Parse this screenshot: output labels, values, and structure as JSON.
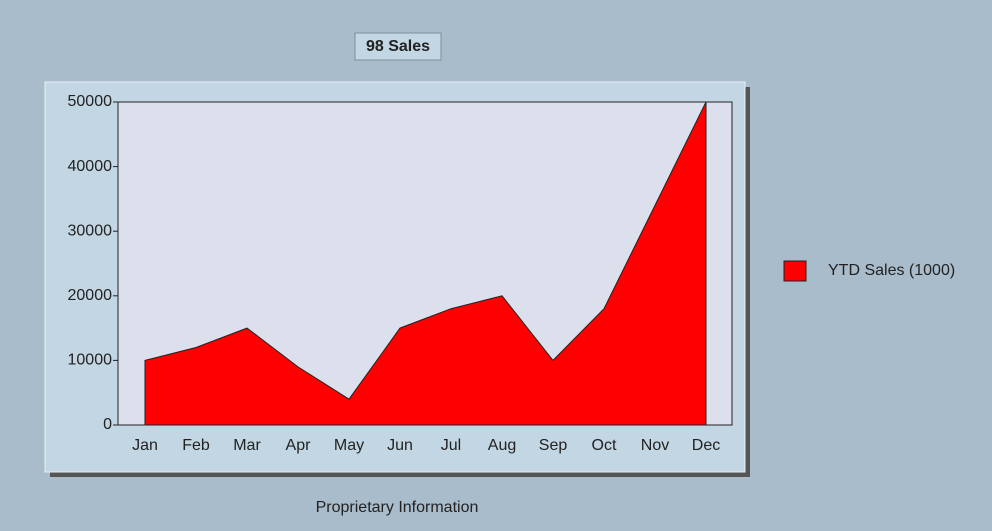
{
  "chart_data": {
    "type": "area",
    "title": "98 Sales",
    "footer": "Proprietary Information",
    "categories": [
      "Jan",
      "Feb",
      "Mar",
      "Apr",
      "May",
      "Jun",
      "Jul",
      "Aug",
      "Sep",
      "Oct",
      "Nov",
      "Dec"
    ],
    "series": [
      {
        "name": "YTD Sales (1000)",
        "color": "#ff0000",
        "values": [
          10000,
          12000,
          15000,
          9000,
          4000,
          15000,
          18000,
          20000,
          10000,
          18000,
          34000,
          50000
        ]
      }
    ],
    "ylim": [
      0,
      50000
    ],
    "yticks": [
      0,
      10000,
      20000,
      30000,
      40000,
      50000
    ],
    "legend": "right"
  }
}
